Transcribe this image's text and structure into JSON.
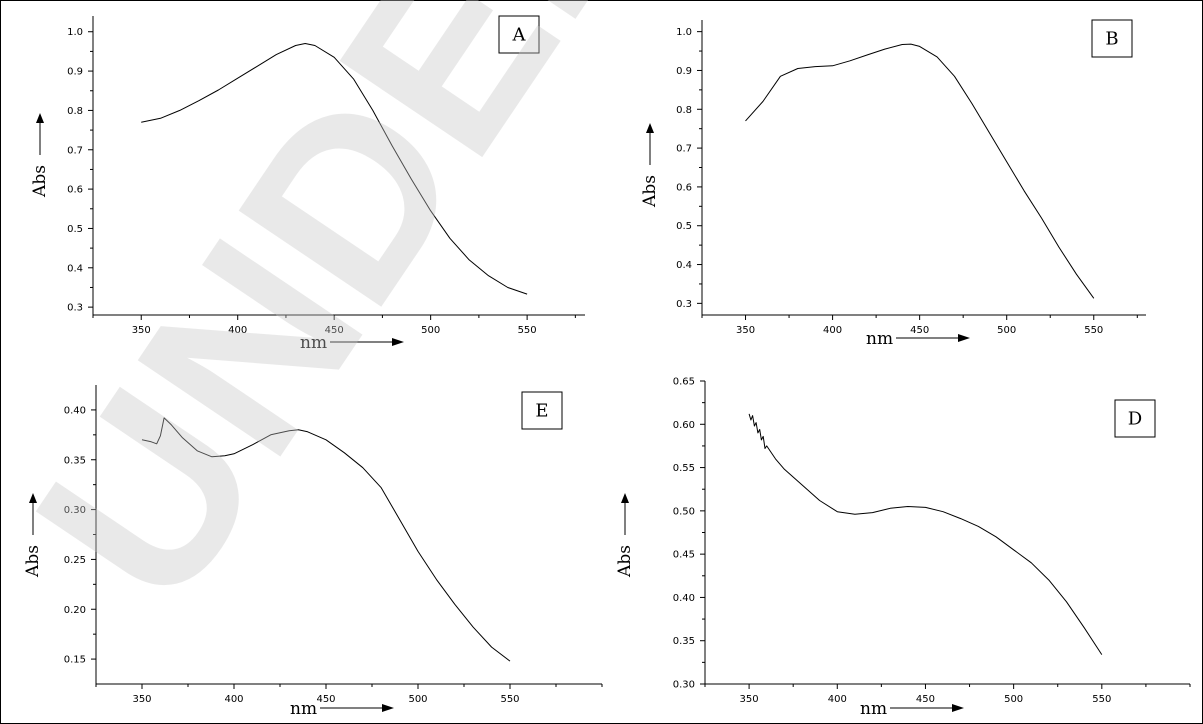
{
  "watermark": "UNDER PEER REVIEW",
  "chart_data": [
    {
      "type": "line",
      "panel_label": "A",
      "xlabel": "nm",
      "ylabel": "Abs",
      "xlim": [
        325,
        580
      ],
      "ylim": [
        0.28,
        1.04
      ],
      "xticks": [
        350,
        400,
        450,
        500,
        550
      ],
      "yticks": [
        0.3,
        0.4,
        0.5,
        0.6,
        0.7,
        0.8,
        0.9,
        1.0
      ],
      "ytick_labels": [
        "0.3",
        "0.4",
        "0.5",
        "0.6",
        "0.7",
        "0.8",
        "0.9",
        "1.0"
      ],
      "grid": false,
      "series": [
        {
          "x": [
            350,
            360,
            370,
            380,
            390,
            400,
            410,
            420,
            430,
            435,
            440,
            450,
            460,
            470,
            480,
            490,
            500,
            510,
            520,
            530,
            540,
            550
          ],
          "y": [
            0.77,
            0.78,
            0.8,
            0.825,
            0.852,
            0.882,
            0.912,
            0.942,
            0.965,
            0.97,
            0.965,
            0.935,
            0.88,
            0.8,
            0.71,
            0.625,
            0.545,
            0.475,
            0.42,
            0.38,
            0.35,
            0.333
          ]
        }
      ]
    },
    {
      "type": "line",
      "panel_label": "B",
      "xlabel": "nm",
      "ylabel": "Abs",
      "xlim": [
        325,
        580
      ],
      "ylim": [
        0.27,
        1.03
      ],
      "xticks": [
        350,
        400,
        450,
        500,
        550
      ],
      "yticks": [
        0.3,
        0.4,
        0.5,
        0.6,
        0.7,
        0.8,
        0.9,
        1.0
      ],
      "ytick_labels": [
        "0.3",
        "0.4",
        "0.5",
        "0.6",
        "0.7",
        "0.8",
        "0.9",
        "1.0"
      ],
      "grid": false,
      "series": [
        {
          "x": [
            350,
            360,
            370,
            380,
            390,
            400,
            410,
            420,
            430,
            440,
            445,
            450,
            460,
            470,
            480,
            490,
            500,
            510,
            520,
            530,
            540,
            550
          ],
          "y": [
            0.77,
            0.82,
            0.885,
            0.905,
            0.91,
            0.912,
            0.925,
            0.94,
            0.955,
            0.967,
            0.968,
            0.962,
            0.935,
            0.885,
            0.815,
            0.74,
            0.665,
            0.59,
            0.52,
            0.445,
            0.375,
            0.313
          ]
        }
      ]
    },
    {
      "type": "line",
      "panel_label": "E",
      "xlabel": "nm",
      "ylabel": "Abs",
      "xlim": [
        325,
        600
      ],
      "ylim": [
        0.125,
        0.425
      ],
      "xticks": [
        350,
        400,
        450,
        500,
        550
      ],
      "yticks": [
        0.15,
        0.2,
        0.25,
        0.3,
        0.35,
        0.4
      ],
      "ytick_labels": [
        "0.15",
        "0.20",
        "0.25",
        "0.30",
        "0.35",
        "0.40"
      ],
      "grid": false,
      "series": [
        {
          "x": [
            350,
            355,
            358,
            360,
            362,
            366,
            372,
            380,
            388,
            395,
            400,
            410,
            420,
            430,
            435,
            440,
            450,
            460,
            470,
            480,
            490,
            500,
            510,
            520,
            530,
            540,
            550
          ],
          "y": [
            0.37,
            0.368,
            0.366,
            0.374,
            0.392,
            0.385,
            0.372,
            0.359,
            0.353,
            0.354,
            0.356,
            0.365,
            0.375,
            0.379,
            0.38,
            0.378,
            0.37,
            0.357,
            0.342,
            0.322,
            0.29,
            0.258,
            0.23,
            0.205,
            0.182,
            0.162,
            0.148
          ]
        }
      ]
    },
    {
      "type": "line",
      "panel_label": "D",
      "xlabel": "nm",
      "ylabel": "Abs",
      "xlim": [
        325,
        600
      ],
      "ylim": [
        0.3,
        0.65
      ],
      "xticks": [
        350,
        400,
        450,
        500,
        550
      ],
      "yticks": [
        0.3,
        0.35,
        0.4,
        0.45,
        0.5,
        0.55,
        0.6,
        0.65
      ],
      "ytick_labels": [
        "0.30",
        "0.35",
        "0.40",
        "0.45",
        "0.50",
        "0.55",
        "0.60",
        "0.65"
      ],
      "grid": false,
      "series": [
        {
          "x": [
            350,
            351,
            352,
            353,
            354,
            355,
            356,
            357,
            358,
            359,
            360,
            365,
            370,
            380,
            390,
            400,
            410,
            420,
            430,
            440,
            450,
            460,
            470,
            480,
            490,
            500,
            510,
            520,
            530,
            540,
            550
          ],
          "y": [
            0.612,
            0.605,
            0.61,
            0.598,
            0.602,
            0.59,
            0.594,
            0.582,
            0.586,
            0.572,
            0.575,
            0.56,
            0.548,
            0.53,
            0.512,
            0.499,
            0.496,
            0.498,
            0.503,
            0.505,
            0.504,
            0.499,
            0.491,
            0.482,
            0.47,
            0.455,
            0.44,
            0.42,
            0.395,
            0.365,
            0.334
          ]
        }
      ]
    }
  ]
}
